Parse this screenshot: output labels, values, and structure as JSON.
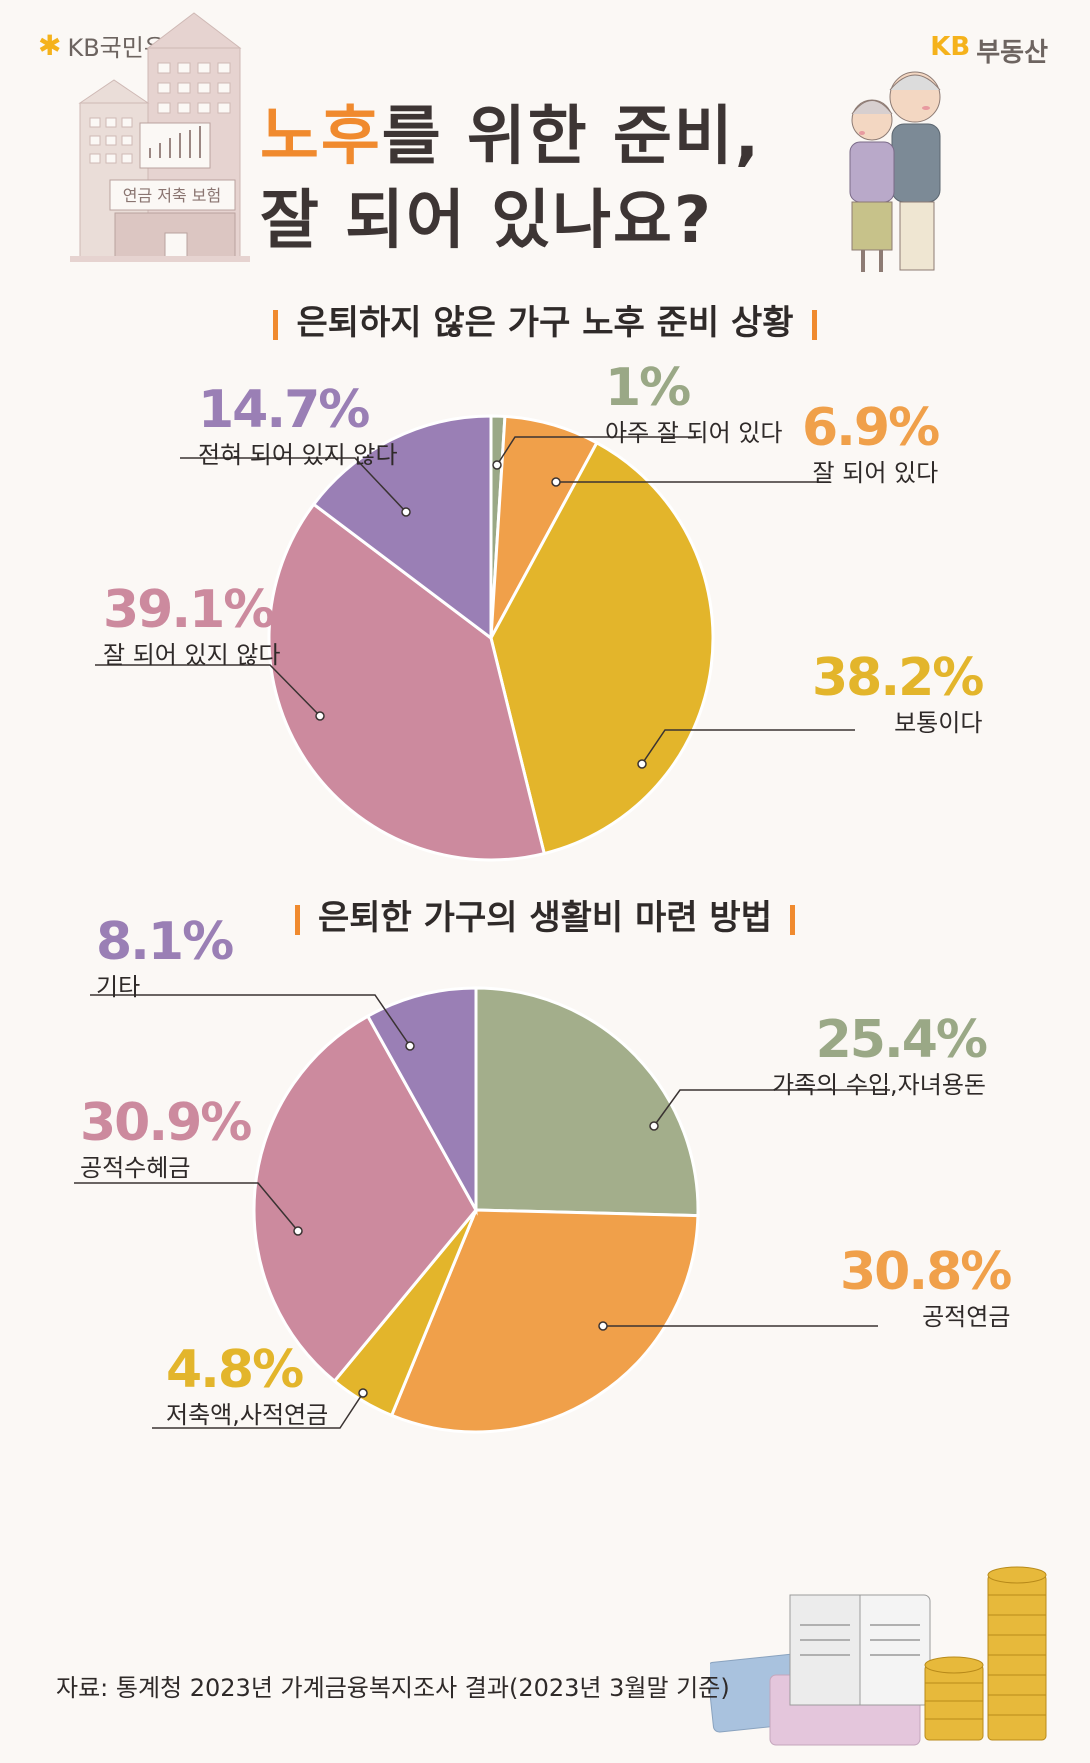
{
  "brand": {
    "left": "KB국민은행",
    "right_kb": "KB",
    "right_name": "부동산"
  },
  "title": {
    "accent": "노후",
    "line1_rest": "를 위한 준비,",
    "line2": "잘 되어 있나요?"
  },
  "building_sign": "연금 저축 보험",
  "chart_data": [
    {
      "type": "pie",
      "title": "은퇴하지 않은 가구 노후 준비 상황",
      "categories": [
        "아주 잘 되어 있다",
        "잘 되어 있다",
        "보통이다",
        "잘 되어 있지 않다",
        "전혀 되어 있지 않다"
      ],
      "values": [
        1.0,
        6.9,
        38.2,
        39.1,
        14.7
      ],
      "value_labels": [
        "1%",
        "6.9%",
        "38.2%",
        "39.1%",
        "14.7%"
      ],
      "colors": [
        "#9aa886",
        "#f0a04a",
        "#e3b52b",
        "#cc8a9e",
        "#9a7fb5"
      ],
      "label_colors": [
        "#9aa886",
        "#f0a04a",
        "#e3b52b",
        "#cc8a9e",
        "#9a7fb5"
      ]
    },
    {
      "type": "pie",
      "title": "은퇴한 가구의 생활비 마련 방법",
      "categories": [
        "가족의 수입,자녀용돈",
        "공적연금",
        "저축액,사적연금",
        "공적수혜금",
        "기타"
      ],
      "values": [
        25.4,
        30.8,
        4.8,
        30.9,
        8.1
      ],
      "value_labels": [
        "25.4%",
        "30.8%",
        "4.8%",
        "30.9%",
        "8.1%"
      ],
      "colors": [
        "#a3ae8b",
        "#f0a04a",
        "#e3b52b",
        "#cc8a9e",
        "#9a7fb5"
      ],
      "label_colors": [
        "#9aa886",
        "#f0a04a",
        "#e3b52b",
        "#cc8a9e",
        "#9a7fb5"
      ]
    }
  ],
  "source": "자료: 통계청 2023년 가계금융복지조사 결과(2023년 3월말 기준)"
}
